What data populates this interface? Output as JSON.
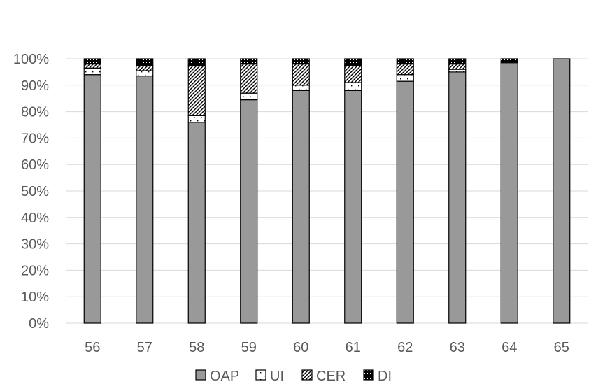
{
  "chart_data": {
    "type": "bar",
    "stacked": true,
    "categories": [
      "56",
      "57",
      "58",
      "59",
      "60",
      "61",
      "62",
      "63",
      "64",
      "65"
    ],
    "series": [
      {
        "name": "OAP",
        "values": [
          94,
          93.5,
          76,
          84.5,
          88,
          88,
          91.5,
          95,
          98.5,
          100
        ],
        "color": "#999999",
        "pattern": "solid"
      },
      {
        "name": "UI",
        "values": [
          2.5,
          2,
          2.5,
          2.5,
          2,
          3,
          2.5,
          1,
          0,
          0
        ],
        "color": "#ffffff",
        "pattern": "dots"
      },
      {
        "name": "CER",
        "values": [
          1.5,
          2,
          19,
          11,
          8,
          6.5,
          4,
          2,
          0,
          0
        ],
        "color": "#ffffff",
        "pattern": "diagonal-hatch"
      },
      {
        "name": "DI",
        "values": [
          2,
          2.5,
          2.5,
          2,
          2,
          2.5,
          2,
          2,
          1.5,
          0
        ],
        "color": "#000000",
        "pattern": "dense-dots"
      }
    ],
    "yticks": [
      "0%",
      "10%",
      "20%",
      "30%",
      "40%",
      "50%",
      "60%",
      "70%",
      "80%",
      "90%",
      "100%"
    ],
    "ylim": [
      0,
      100
    ],
    "grid": true,
    "legend_position": "bottom",
    "title": "",
    "xlabel": "",
    "ylabel": ""
  }
}
